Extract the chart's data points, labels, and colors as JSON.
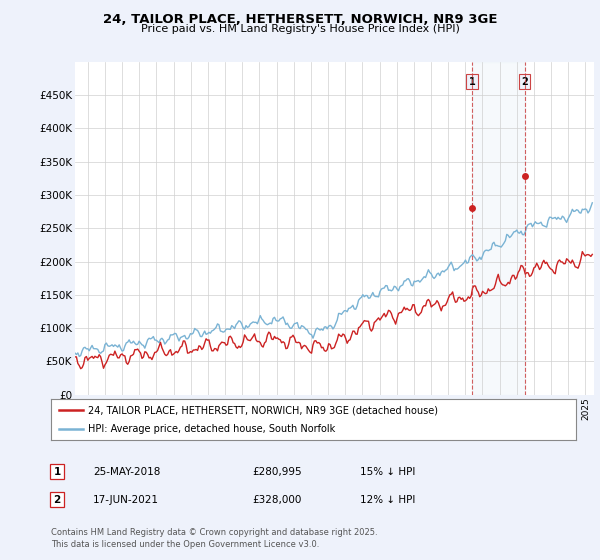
{
  "title": "24, TAILOR PLACE, HETHERSETT, NORWICH, NR9 3GE",
  "subtitle": "Price paid vs. HM Land Registry's House Price Index (HPI)",
  "ylabel_ticks": [
    "£0",
    "£50K",
    "£100K",
    "£150K",
    "£200K",
    "£250K",
    "£300K",
    "£350K",
    "£400K",
    "£450K"
  ],
  "ytick_vals": [
    0,
    50000,
    100000,
    150000,
    200000,
    250000,
    300000,
    350000,
    400000,
    450000
  ],
  "ylim": [
    0,
    500000
  ],
  "xlim_start": 1995.25,
  "xlim_end": 2025.5,
  "hpi_color": "#7ab3d4",
  "price_color": "#cc2222",
  "dashed_color": "#cc4444",
  "marker1_x": 2018.38,
  "marker1_y": 280995,
  "marker2_x": 2021.46,
  "marker2_y": 328000,
  "sale1_label": "1",
  "sale2_label": "2",
  "legend_line1": "24, TAILOR PLACE, HETHERSETT, NORWICH, NR9 3GE (detached house)",
  "legend_line2": "HPI: Average price, detached house, South Norfolk",
  "table_row1": [
    "1",
    "25-MAY-2018",
    "£280,995",
    "15% ↓ HPI"
  ],
  "table_row2": [
    "2",
    "17-JUN-2021",
    "£328,000",
    "12% ↓ HPI"
  ],
  "footnote": "Contains HM Land Registry data © Crown copyright and database right 2025.\nThis data is licensed under the Open Government Licence v3.0.",
  "background_color": "#eef2fb",
  "plot_bg_color": "#ffffff",
  "grid_color": "#d0d0d0"
}
